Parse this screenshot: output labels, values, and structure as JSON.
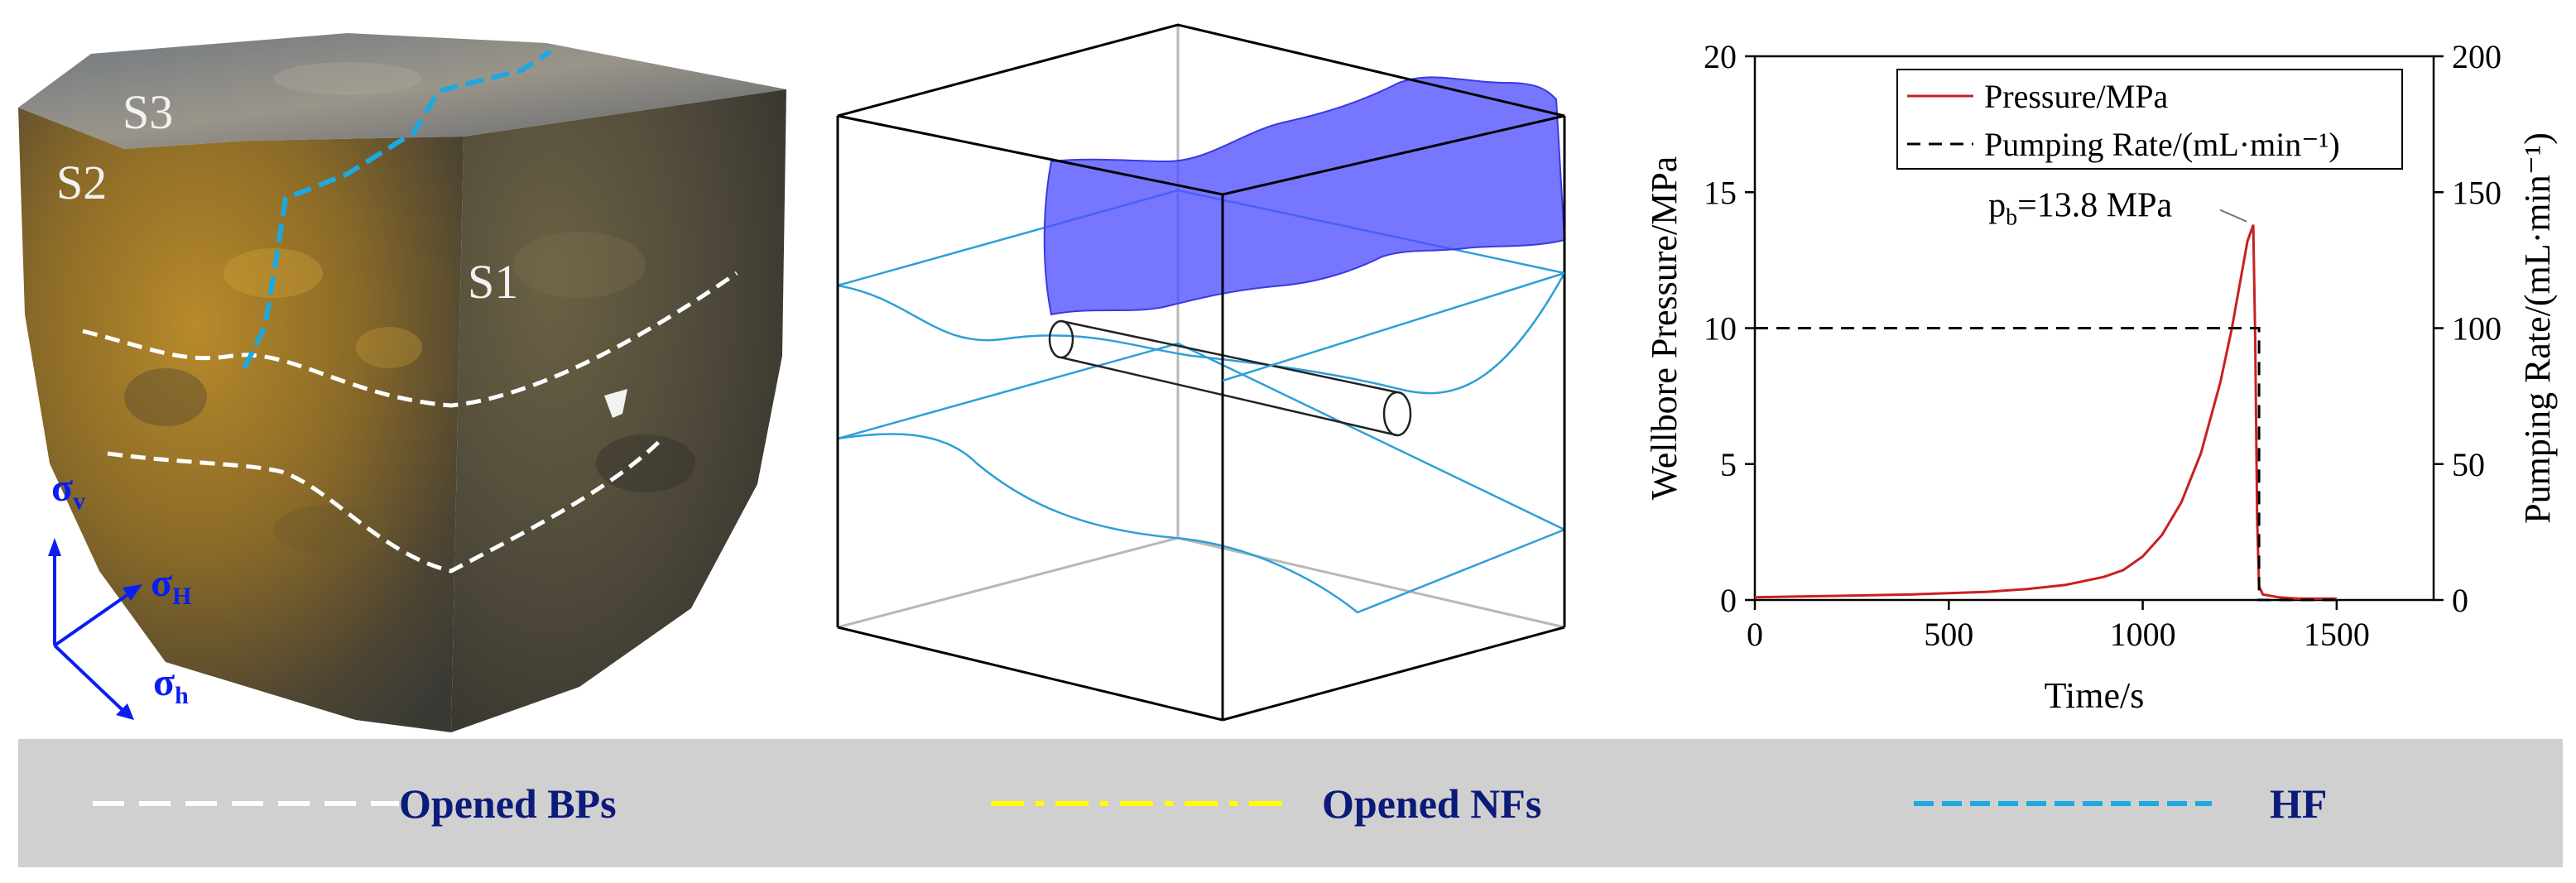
{
  "rock": {
    "face_labels": [
      "S3",
      "S2",
      "S1"
    ],
    "stress_axes": {
      "vertical": {
        "base": "σ",
        "sub": "v"
      },
      "max_horizontal": {
        "base": "σ",
        "sub": "H"
      },
      "min_horizontal": {
        "base": "σ",
        "sub": "h"
      }
    },
    "colors": {
      "stress_axis": "#0a1ef0",
      "bp_trace": "#ffffff",
      "hf_trace": "#1ea8e0"
    }
  },
  "model": {
    "colors": {
      "fracture_surface": "#5050ff",
      "bedding_lines": "#2f9fd8",
      "box": "#000000"
    }
  },
  "chart_data": {
    "type": "line",
    "xlabel": "Time/s",
    "ylabel": "Wellbore Pressure/MPa",
    "y2label": "Pumping Rate/(mL·min⁻¹)",
    "xlim": [
      0,
      1750
    ],
    "ylim": [
      0,
      20
    ],
    "y2lim": [
      0,
      200
    ],
    "xticks": [
      0,
      500,
      1000,
      1500
    ],
    "yticks": [
      0,
      5,
      10,
      15,
      20
    ],
    "y2ticks": [
      0,
      50,
      100,
      150,
      200
    ],
    "grid": false,
    "legend_position": "top-right",
    "series": [
      {
        "name": "Pressure/MPa",
        "axis": "left",
        "color": "#c82020",
        "style": "solid",
        "x": [
          0,
          200,
          400,
          600,
          700,
          800,
          900,
          950,
          1000,
          1050,
          1100,
          1150,
          1200,
          1230,
          1250,
          1270,
          1285,
          1290,
          1295,
          1300,
          1310,
          1350,
          1400,
          1450,
          1500
        ],
        "y": [
          0.1,
          0.15,
          0.2,
          0.3,
          0.4,
          0.55,
          0.85,
          1.1,
          1.6,
          2.4,
          3.6,
          5.4,
          8.0,
          10.0,
          11.6,
          13.2,
          13.8,
          9.5,
          3.0,
          0.5,
          0.2,
          0.1,
          0.05,
          0.05,
          0.05
        ]
      },
      {
        "name": "Pumping Rate/(mL·min⁻¹)",
        "axis": "right",
        "color": "#000000",
        "style": "dashed",
        "x": [
          0,
          1290,
          1300,
          1300,
          1500
        ],
        "y": [
          100,
          100,
          100,
          0,
          0
        ]
      }
    ],
    "annotations": [
      {
        "label_base": "p",
        "label_sub": "b",
        "label_rest": "=13.8 MPa",
        "x": 1285,
        "y": 13.8
      }
    ]
  },
  "legend_bar": {
    "items": [
      {
        "label": "Opened BPs",
        "color": "#ffffff",
        "style": "dashed"
      },
      {
        "label": "Opened NFs",
        "color": "#ffff00",
        "style": "dashdot"
      },
      {
        "label": "HF",
        "color": "#1ea8e0",
        "style": "dashed"
      }
    ]
  }
}
